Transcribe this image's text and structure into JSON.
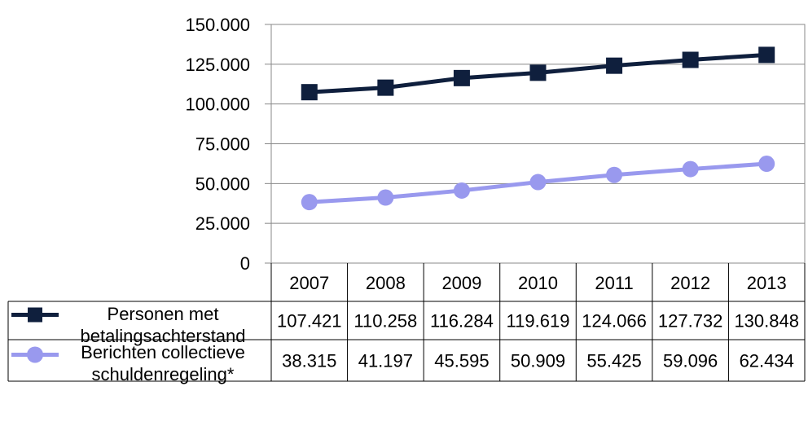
{
  "chart_data": {
    "type": "line",
    "categories": [
      "2007",
      "2008",
      "2009",
      "2010",
      "2011",
      "2012",
      "2013"
    ],
    "ylim": [
      0,
      150000
    ],
    "yticks": [
      {
        "value": 0,
        "label": "0"
      },
      {
        "value": 25000,
        "label": "25.000"
      },
      {
        "value": 50000,
        "label": "50.000"
      },
      {
        "value": 75000,
        "label": "75.000"
      },
      {
        "value": 100000,
        "label": "100.000"
      },
      {
        "value": 125000,
        "label": "125.000"
      },
      {
        "value": 150000,
        "label": "150.000"
      }
    ],
    "grid": true,
    "legend": "data-table",
    "series": [
      {
        "name_lines": [
          "Personen met",
          "betalingsachterstand"
        ],
        "values": [
          107421,
          110258,
          116284,
          119619,
          124066,
          127732,
          130848
        ],
        "labels": [
          "107.421",
          "110.258",
          "116.284",
          "119.619",
          "124.066",
          "127.732",
          "130.848"
        ],
        "color": "#0f1f3d",
        "marker": "square"
      },
      {
        "name_lines": [
          "Berichten collectieve",
          "schuldenregeling*"
        ],
        "values": [
          38315,
          41197,
          45595,
          50909,
          55425,
          59096,
          62434
        ],
        "labels": [
          "38.315",
          "41.197",
          "45.595",
          "50.909",
          "55.425",
          "59.096",
          "62.434"
        ],
        "color": "#9999ee",
        "marker": "circle"
      }
    ]
  }
}
